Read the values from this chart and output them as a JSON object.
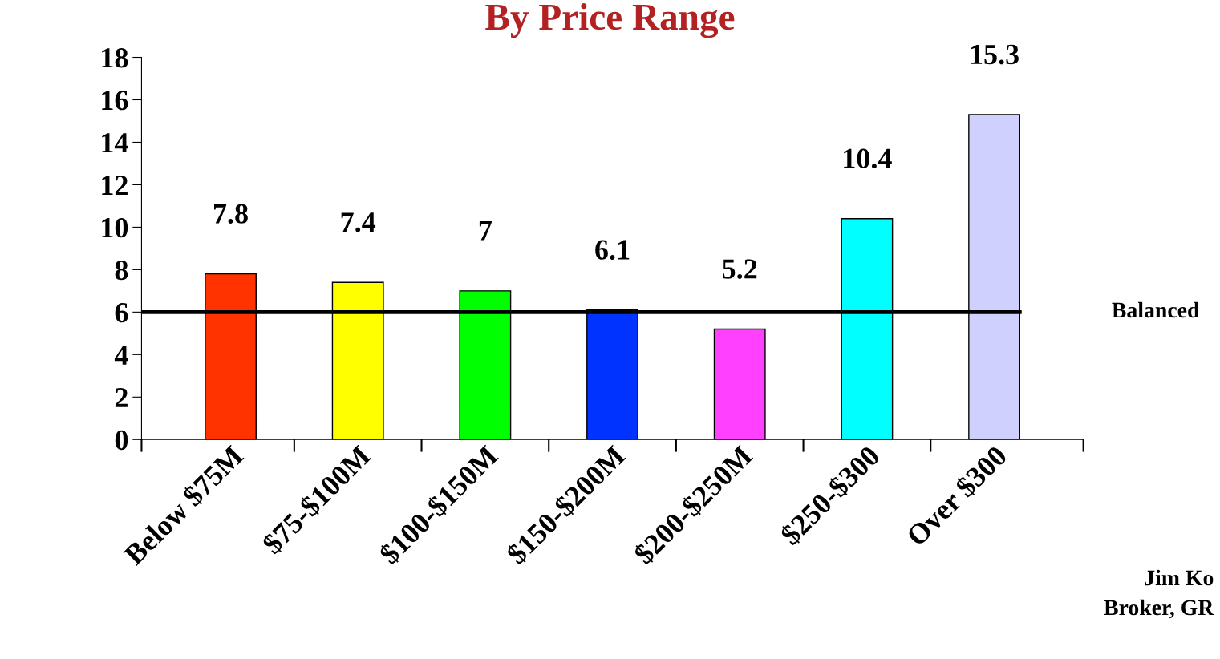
{
  "chart_data": {
    "type": "bar",
    "title": "By Price Range",
    "categories": [
      "Below $75M",
      "$75-$100M",
      "$100-$150M",
      "$150-$200M",
      "$200-$250M",
      "$250-$300",
      "Over $300"
    ],
    "values": [
      7.8,
      7.4,
      7,
      6.1,
      5.2,
      10.4,
      15.3
    ],
    "colors": [
      "#ff3300",
      "#ffff00",
      "#00ff00",
      "#0033ff",
      "#ff40ff",
      "#00ffff",
      "#d0d0ff"
    ],
    "data_labels": true,
    "ylim": [
      0,
      18
    ],
    "yticks": [
      0,
      2,
      4,
      6,
      8,
      10,
      12,
      14,
      16,
      18
    ],
    "ref_lines": [
      {
        "axis": "y",
        "value": 6,
        "label": "Balanced",
        "color": "#000000"
      }
    ],
    "annotations": [
      "Jim Ko",
      "Broker, GR"
    ],
    "grid": false
  }
}
